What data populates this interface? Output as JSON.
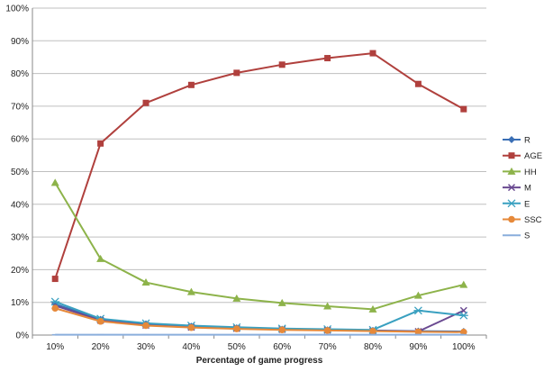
{
  "chart_data": {
    "type": "line",
    "categories": [
      "10%",
      "20%",
      "30%",
      "40%",
      "50%",
      "60%",
      "70%",
      "80%",
      "90%",
      "100%"
    ],
    "xlabel": "Percentage of game progress",
    "ylim": [
      0,
      100
    ],
    "yticks": [
      "0%",
      "10%",
      "20%",
      "30%",
      "40%",
      "50%",
      "60%",
      "70%",
      "80%",
      "90%",
      "100%"
    ],
    "grid": "horizontal",
    "legend": "right",
    "series": [
      {
        "name": "R",
        "color": "#3a6fb5",
        "marker": "diamond",
        "values": [
          9.5,
          4.8,
          3.4,
          2.7,
          2.2,
          1.8,
          1.6,
          1.4,
          1.2,
          1.1
        ]
      },
      {
        "name": "AGE",
        "color": "#b0403d",
        "marker": "square",
        "values": [
          17.2,
          58.6,
          71.0,
          76.5,
          80.2,
          82.7,
          84.7,
          86.2,
          76.8,
          69.1
        ]
      },
      {
        "name": "HH",
        "color": "#8db34a",
        "marker": "triangle",
        "values": [
          46.6,
          23.3,
          16.1,
          13.2,
          11.2,
          9.8,
          8.8,
          7.9,
          12.1,
          15.4
        ]
      },
      {
        "name": "M",
        "color": "#6a4a91",
        "marker": "x",
        "values": [
          9.0,
          4.5,
          3.0,
          2.4,
          2.0,
          1.7,
          1.5,
          1.3,
          1.1,
          7.5
        ]
      },
      {
        "name": "E",
        "color": "#39a0c0",
        "marker": "star",
        "values": [
          10.2,
          5.0,
          3.6,
          2.9,
          2.4,
          2.0,
          1.8,
          1.6,
          7.5,
          6.0
        ]
      },
      {
        "name": "SSC",
        "color": "#e6893a",
        "marker": "circle",
        "values": [
          8.2,
          4.2,
          2.9,
          2.3,
          1.9,
          1.6,
          1.4,
          1.2,
          1.0,
          0.9
        ]
      },
      {
        "name": "S",
        "color": "#8aaedc",
        "marker": "dash",
        "values": [
          0.1,
          0.1,
          0.1,
          0.1,
          0.1,
          0.1,
          0.1,
          0.1,
          0.1,
          0.1
        ]
      }
    ]
  }
}
